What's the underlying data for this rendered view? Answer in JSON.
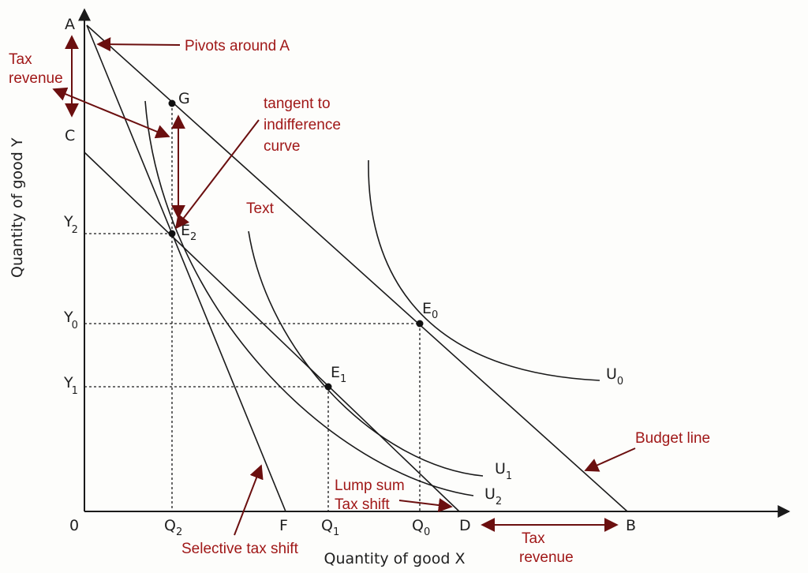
{
  "axes": {
    "x_label": "Quantity of good X",
    "y_label": "Quantity of good Y",
    "origin": "0"
  },
  "x_ticks": {
    "q2": "Q",
    "q2_sub": "2",
    "f": "F",
    "q1": "Q",
    "q1_sub": "1",
    "q0": "Q",
    "q0_sub": "0",
    "d": "D",
    "b": "B"
  },
  "y_ticks": {
    "a": "A",
    "c": "C",
    "y2": "Y",
    "y2_sub": "2",
    "y0": "Y",
    "y0_sub": "0",
    "y1": "Y",
    "y1_sub": "1"
  },
  "points": {
    "g": "G",
    "e2": "E",
    "e2_sub": "2",
    "e0": "E",
    "e0_sub": "0",
    "e1": "E",
    "e1_sub": "1"
  },
  "curves": {
    "u0": "U",
    "u0_sub": "0",
    "u1": "U",
    "u1_sub": "1",
    "u2": "U",
    "u2_sub": "2"
  },
  "annotations": {
    "pivots": "Pivots around A",
    "tax_revenue_left_1": "Tax",
    "tax_revenue_left_2": "revenue",
    "tangent_1": "tangent to",
    "tangent_2": "indifference",
    "tangent_3": "curve",
    "text": "Text",
    "budget_line": "Budget line",
    "lump_sum_1": "Lump sum",
    "lump_sum_2": "Tax shift",
    "selective": "Selective tax shift",
    "tax_revenue_bottom_1": "Tax",
    "tax_revenue_bottom_2": "revenue"
  },
  "colors": {
    "annotation_text": "#a01818",
    "annotation_arrow": "#6b0f0f",
    "line": "#1a1a1a"
  }
}
